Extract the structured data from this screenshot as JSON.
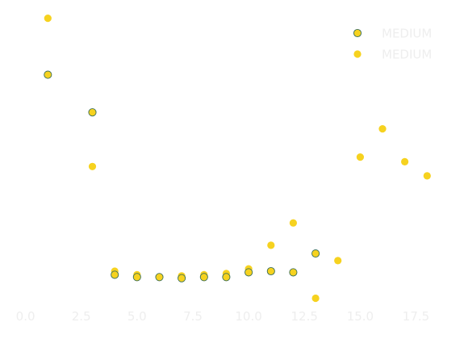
{
  "chart_data": {
    "type": "scatter",
    "title": "",
    "xlabel": "",
    "ylabel": "",
    "xlim": [
      0,
      19
    ],
    "ylim": [
      -0.1,
      1.35
    ],
    "grid": false,
    "legend_placement": "top-right",
    "x_ticks": [
      "0.0",
      "2.5",
      "5.0",
      "7.5",
      "10.0",
      "12.5",
      "15.0",
      "17.5"
    ],
    "series": [
      {
        "name": "MEDIUM",
        "marker": "circle-outlined",
        "fill": "#f6d21f",
        "edge": "#3a6e5a",
        "points": [
          [
            1,
            0.95
          ],
          [
            3,
            0.79
          ],
          [
            4,
            0.1
          ],
          [
            5,
            0.09
          ],
          [
            6,
            0.09
          ],
          [
            7,
            0.085
          ],
          [
            8,
            0.09
          ],
          [
            9,
            0.09
          ],
          [
            10,
            0.11
          ],
          [
            11,
            0.115
          ],
          [
            12,
            0.11
          ],
          [
            13,
            0.19
          ]
        ]
      },
      {
        "name": "MEDIUM",
        "marker": "circle",
        "fill": "#f6d21f",
        "edge": "#f6d21f",
        "points": [
          [
            1,
            1.19
          ],
          [
            3,
            0.56
          ],
          [
            4,
            0.115
          ],
          [
            5,
            0.1
          ],
          [
            6,
            0.09
          ],
          [
            7,
            0.095
          ],
          [
            8,
            0.1
          ],
          [
            9,
            0.105
          ],
          [
            10,
            0.125
          ],
          [
            11,
            0.225
          ],
          [
            12,
            0.32
          ],
          [
            13,
            0.0
          ],
          [
            14,
            0.16
          ],
          [
            15,
            0.6
          ],
          [
            16,
            0.72
          ],
          [
            17,
            0.58
          ],
          [
            18,
            0.52
          ]
        ]
      }
    ]
  }
}
